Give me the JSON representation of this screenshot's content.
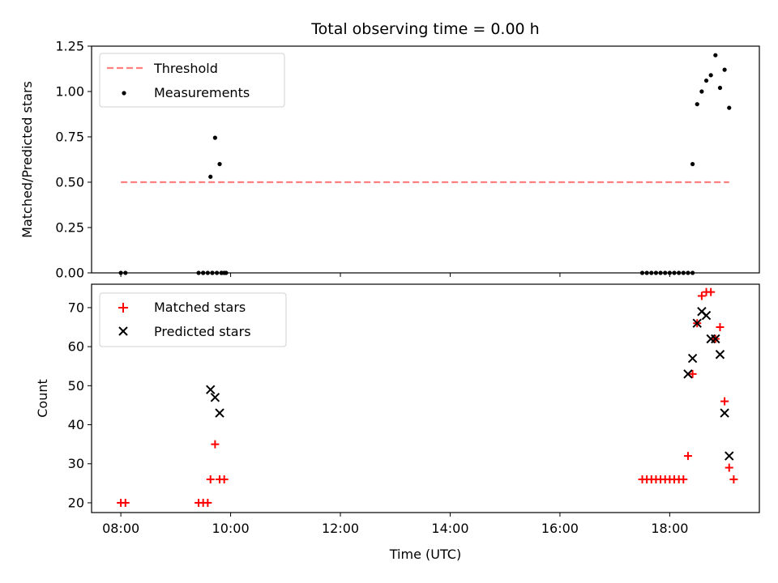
{
  "chart_data": {
    "title": "Total observing time = 0.00 h",
    "xlabel": "Time (UTC)",
    "x_ticks": [
      "08:00",
      "10:00",
      "12:00",
      "14:00",
      "16:00",
      "18:00"
    ],
    "panels": [
      {
        "type": "scatter",
        "ylabel": "Matched/Predicted stars",
        "ylim": [
          0,
          1.25
        ],
        "y_ticks": [
          "0.00",
          "0.25",
          "0.50",
          "0.75",
          "1.00",
          "1.25"
        ],
        "legend_position": "top-left",
        "threshold": {
          "name": "Threshold",
          "value": 0.5,
          "color": "#ff7f7f",
          "x_range": [
            "08:00",
            "19:05"
          ]
        },
        "series": [
          {
            "name": "Measurements",
            "color": "#000000",
            "marker": "dot",
            "x": [
              "08:00",
              "08:05",
              "09:25",
              "09:30",
              "09:35",
              "09:40",
              "09:45",
              "09:50",
              "09:55",
              "09:30",
              "09:40",
              "09:50",
              "17:30",
              "17:35",
              "17:40",
              "17:45",
              "17:50",
              "17:55",
              "18:00",
              "18:05",
              "18:10",
              "18:15",
              "18:20",
              "18:25",
              "09:38",
              "09:43",
              "09:48",
              "09:53",
              "18:25",
              "18:30",
              "18:35",
              "18:40",
              "18:45",
              "18:50",
              "18:55",
              "19:00",
              "19:05"
            ],
            "y": [
              0,
              0,
              0,
              0,
              0,
              0,
              0,
              0,
              0,
              0,
              0,
              0,
              0,
              0,
              0,
              0,
              0,
              0,
              0,
              0,
              0,
              0,
              0,
              0,
              0.53,
              0.745,
              0.6,
              0,
              0.6,
              0.93,
              1.0,
              1.06,
              1.09,
              1.2,
              1.02,
              1.12,
              0.91
            ]
          }
        ]
      },
      {
        "type": "scatter",
        "ylabel": "Count",
        "ylim": [
          17.5,
          76
        ],
        "y_ticks": [
          "20",
          "30",
          "40",
          "50",
          "60",
          "70"
        ],
        "legend_position": "top-left",
        "series": [
          {
            "name": "Matched stars",
            "color": "#ff0000",
            "marker": "plus",
            "x": [
              "08:00",
              "08:05",
              "09:25",
              "09:30",
              "09:35",
              "09:38",
              "09:43",
              "09:48",
              "09:53",
              "17:30",
              "17:35",
              "17:40",
              "17:45",
              "17:50",
              "17:55",
              "18:00",
              "18:05",
              "18:10",
              "18:15",
              "18:20",
              "18:25",
              "18:30",
              "18:35",
              "18:40",
              "18:45",
              "18:50",
              "18:55",
              "19:00",
              "19:05",
              "19:10"
            ],
            "y": [
              20,
              20,
              20,
              20,
              20,
              26,
              35,
              26,
              26,
              26,
              26,
              26,
              26,
              26,
              26,
              26,
              26,
              26,
              26,
              32,
              53,
              66,
              73,
              74,
              74,
              62,
              65,
              46,
              29,
              26
            ]
          },
          {
            "name": "Predicted stars",
            "color": "#000000",
            "marker": "x",
            "x": [
              "09:38",
              "09:43",
              "09:48",
              "18:20",
              "18:25",
              "18:30",
              "18:35",
              "18:40",
              "18:45",
              "18:50",
              "18:55",
              "19:00",
              "19:05"
            ],
            "y": [
              49,
              47,
              43,
              53,
              57,
              66,
              69,
              68,
              62,
              62,
              58,
              43,
              32
            ]
          }
        ]
      }
    ]
  }
}
